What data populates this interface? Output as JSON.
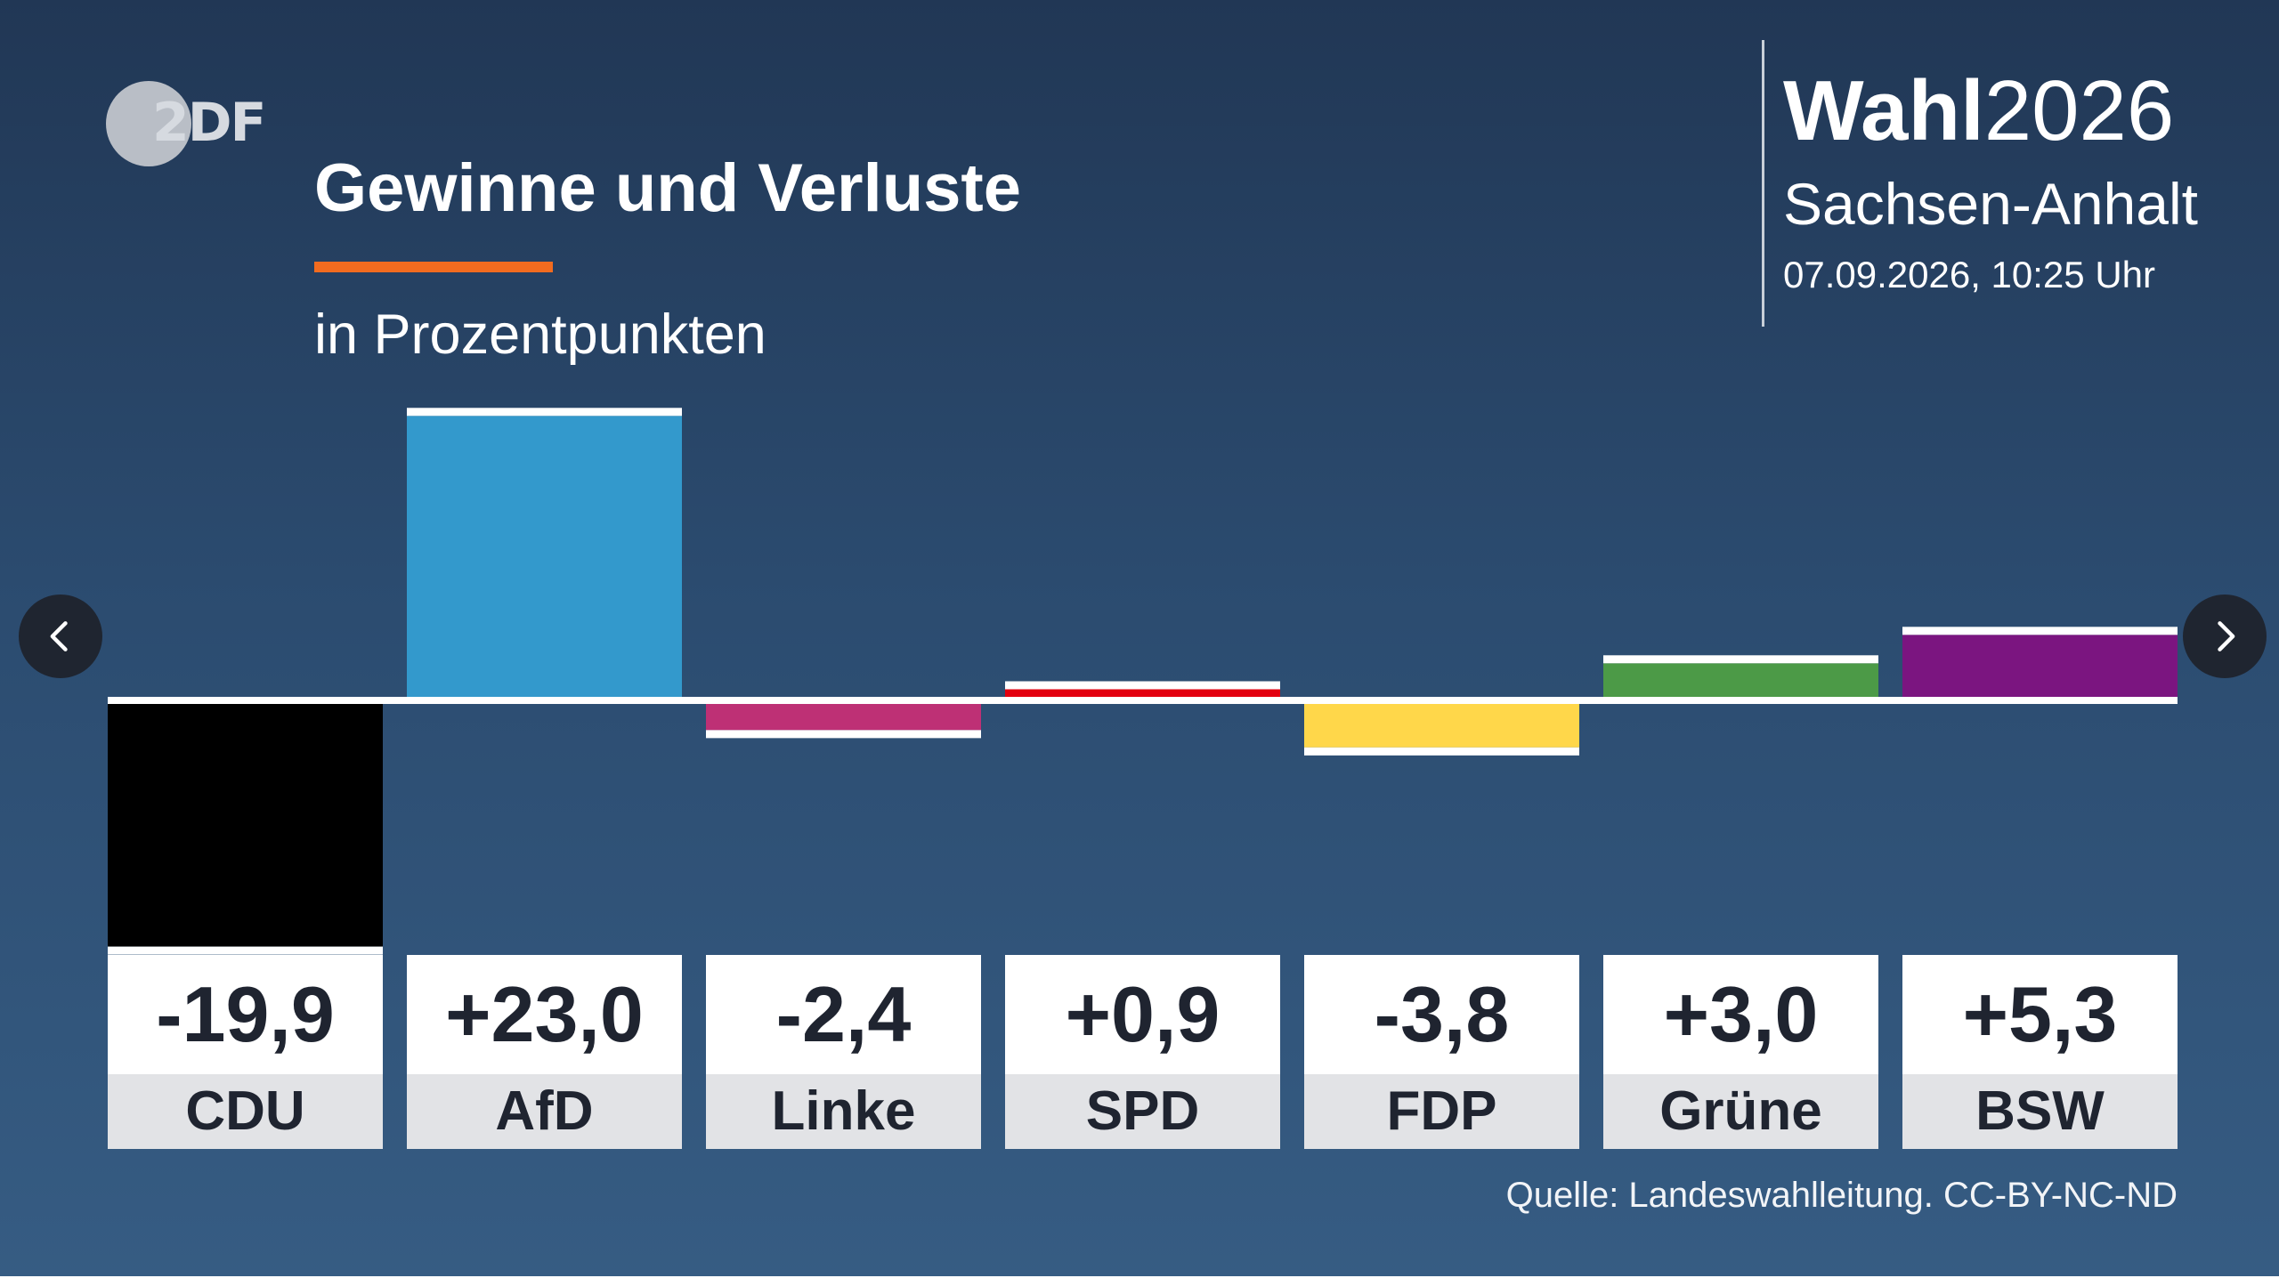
{
  "branding": {
    "logo_text": "2DF"
  },
  "header": {
    "title": "Gewinne und Verluste",
    "subtitle": "in Prozentpunkten",
    "election_bold": "Wahl",
    "election_year": "2026",
    "region": "Sachsen-Anhalt",
    "datetime": "07.09.2026, 10:25 Uhr"
  },
  "footer": {
    "source": "Quelle: Landeswahlleitung. CC-BY-NC-ND"
  },
  "navigation": {
    "prev_icon": "chevron-left-icon",
    "next_icon": "chevron-right-icon"
  },
  "colors": {
    "accent": "#f26b1f",
    "background": "#2b4b6f"
  },
  "chart_data": {
    "type": "bar",
    "title": "Gewinne und Verluste",
    "ylabel": "",
    "xlabel": "",
    "categories": [
      "CDU",
      "AfD",
      "Linke",
      "SPD",
      "FDP",
      "Grüne",
      "BSW"
    ],
    "values": [
      -19.9,
      23.0,
      -2.4,
      0.9,
      -3.8,
      3.0,
      5.3
    ],
    "value_labels": [
      "-19,9",
      "+23,0",
      "-2,4",
      "+0,9",
      "-3,8",
      "+3,0",
      "+5,3"
    ],
    "colors": [
      "#000000",
      "#3399cc",
      "#be3075",
      "#e3000f",
      "#ffd74a",
      "#4c9a47",
      "#7b1580"
    ],
    "grid": false,
    "legend": "none"
  }
}
